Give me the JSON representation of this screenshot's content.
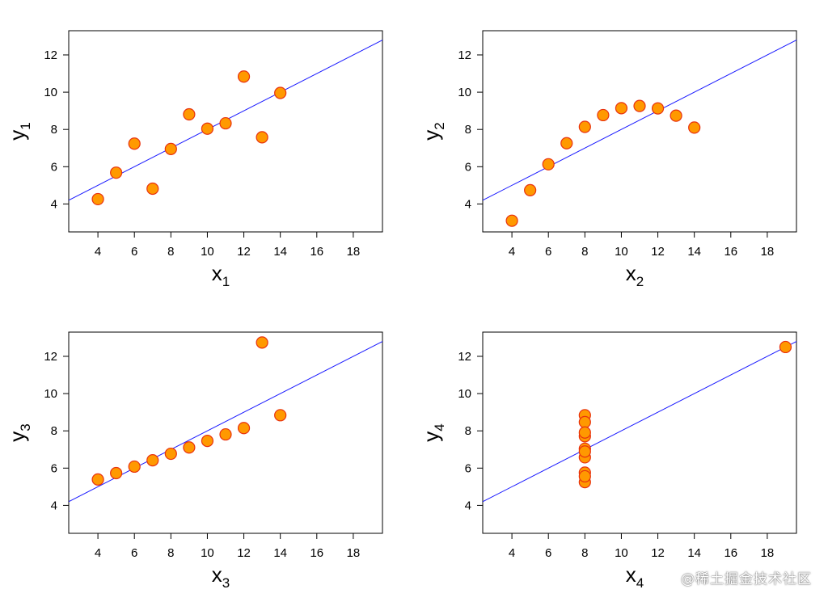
{
  "watermark": "@稀土掘金技术社区",
  "style": {
    "point_fill": "#ff9900",
    "point_stroke": "#e8320f",
    "line_color": "#1a1aff",
    "frame_color": "#000000"
  },
  "chart_data": [
    {
      "type": "scatter",
      "title": "",
      "xlabel": "x",
      "xlabel_sub": "1",
      "ylabel": "y",
      "ylabel_sub": "1",
      "xlim": [
        2.4,
        19.6
      ],
      "ylim": [
        2.5,
        13.3
      ],
      "xticks": [
        4,
        6,
        8,
        10,
        12,
        14,
        16,
        18
      ],
      "yticks": [
        4,
        6,
        8,
        10,
        12
      ],
      "fit_line": {
        "intercept": 3.0,
        "slope": 0.5
      },
      "points": [
        [
          10,
          8.04
        ],
        [
          8,
          6.95
        ],
        [
          13,
          7.58
        ],
        [
          9,
          8.81
        ],
        [
          11,
          8.33
        ],
        [
          14,
          9.96
        ],
        [
          6,
          7.24
        ],
        [
          4,
          4.26
        ],
        [
          12,
          10.84
        ],
        [
          7,
          4.82
        ],
        [
          5,
          5.68
        ]
      ]
    },
    {
      "type": "scatter",
      "title": "",
      "xlabel": "x",
      "xlabel_sub": "2",
      "ylabel": "y",
      "ylabel_sub": "2",
      "xlim": [
        2.4,
        19.6
      ],
      "ylim": [
        2.5,
        13.3
      ],
      "xticks": [
        4,
        6,
        8,
        10,
        12,
        14,
        16,
        18
      ],
      "yticks": [
        4,
        6,
        8,
        10,
        12
      ],
      "fit_line": {
        "intercept": 3.0,
        "slope": 0.5
      },
      "points": [
        [
          10,
          9.14
        ],
        [
          8,
          8.14
        ],
        [
          13,
          8.74
        ],
        [
          9,
          8.77
        ],
        [
          11,
          9.26
        ],
        [
          14,
          8.1
        ],
        [
          6,
          6.13
        ],
        [
          4,
          3.1
        ],
        [
          12,
          9.13
        ],
        [
          7,
          7.26
        ],
        [
          5,
          4.74
        ]
      ]
    },
    {
      "type": "scatter",
      "title": "",
      "xlabel": "x",
      "xlabel_sub": "3",
      "ylabel": "y",
      "ylabel_sub": "3",
      "xlim": [
        2.4,
        19.6
      ],
      "ylim": [
        2.5,
        13.3
      ],
      "xticks": [
        4,
        6,
        8,
        10,
        12,
        14,
        16,
        18
      ],
      "yticks": [
        4,
        6,
        8,
        10,
        12
      ],
      "fit_line": {
        "intercept": 3.0,
        "slope": 0.5
      },
      "points": [
        [
          10,
          7.46
        ],
        [
          8,
          6.77
        ],
        [
          13,
          12.74
        ],
        [
          9,
          7.11
        ],
        [
          11,
          7.81
        ],
        [
          14,
          8.84
        ],
        [
          6,
          6.08
        ],
        [
          4,
          5.39
        ],
        [
          12,
          8.15
        ],
        [
          7,
          6.42
        ],
        [
          5,
          5.73
        ]
      ]
    },
    {
      "type": "scatter",
      "title": "",
      "xlabel": "x",
      "xlabel_sub": "4",
      "ylabel": "y",
      "ylabel_sub": "4",
      "xlim": [
        2.4,
        19.6
      ],
      "ylim": [
        2.5,
        13.3
      ],
      "xticks": [
        4,
        6,
        8,
        10,
        12,
        14,
        16,
        18
      ],
      "yticks": [
        4,
        6,
        8,
        10,
        12
      ],
      "fit_line": {
        "intercept": 3.0,
        "slope": 0.5
      },
      "points": [
        [
          8,
          6.58
        ],
        [
          8,
          5.76
        ],
        [
          8,
          7.71
        ],
        [
          8,
          8.84
        ],
        [
          8,
          8.47
        ],
        [
          8,
          7.04
        ],
        [
          8,
          5.25
        ],
        [
          19,
          12.5
        ],
        [
          8,
          5.56
        ],
        [
          8,
          7.91
        ],
        [
          8,
          6.89
        ]
      ]
    }
  ]
}
